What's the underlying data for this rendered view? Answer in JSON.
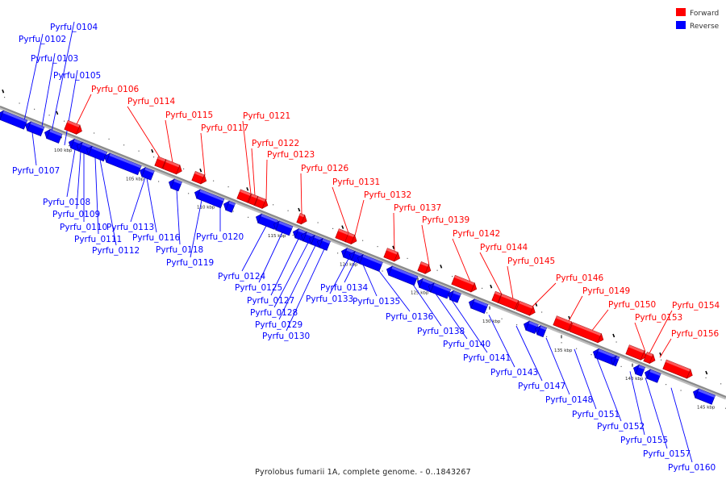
{
  "caption": "Pyrolobus fumarii 1A, complete genome. - 0..1843267",
  "legend": [
    {
      "label": "Forward",
      "color": "#ff0000"
    },
    {
      "label": "Reverse",
      "color": "#0000ff"
    }
  ],
  "colors": {
    "forward": "#ff0000",
    "reverse": "#0000ff",
    "axis": "#8a8a8a"
  },
  "ticks": [
    "100 kbp",
    "105 kbp",
    "110 kbp",
    "115 kbp",
    "120 kbp",
    "125 kbp",
    "130 kbp",
    "135 kbp",
    "140 kbp",
    "145 kbp"
  ],
  "genes": [
    {
      "name": "Pyrfu_0102",
      "strand": "reverse"
    },
    {
      "name": "Pyrfu_0103",
      "strand": "reverse"
    },
    {
      "name": "Pyrfu_0104",
      "strand": "reverse"
    },
    {
      "name": "Pyrfu_0105",
      "strand": "reverse"
    },
    {
      "name": "Pyrfu_0106",
      "strand": "forward"
    },
    {
      "name": "Pyrfu_0107",
      "strand": "reverse"
    },
    {
      "name": "Pyrfu_0108",
      "strand": "reverse"
    },
    {
      "name": "Pyrfu_0109",
      "strand": "reverse"
    },
    {
      "name": "Pyrfu_0110",
      "strand": "reverse"
    },
    {
      "name": "Pyrfu_0111",
      "strand": "reverse"
    },
    {
      "name": "Pyrfu_0112",
      "strand": "reverse"
    },
    {
      "name": "Pyrfu_0113",
      "strand": "reverse"
    },
    {
      "name": "Pyrfu_0114",
      "strand": "forward"
    },
    {
      "name": "Pyrfu_0115",
      "strand": "forward"
    },
    {
      "name": "Pyrfu_0116",
      "strand": "reverse"
    },
    {
      "name": "Pyrfu_0117",
      "strand": "forward"
    },
    {
      "name": "Pyrfu_0118",
      "strand": "reverse"
    },
    {
      "name": "Pyrfu_0119",
      "strand": "reverse"
    },
    {
      "name": "Pyrfu_0120",
      "strand": "reverse"
    },
    {
      "name": "Pyrfu_0121",
      "strand": "forward"
    },
    {
      "name": "Pyrfu_0122",
      "strand": "forward"
    },
    {
      "name": "Pyrfu_0123",
      "strand": "forward"
    },
    {
      "name": "Pyrfu_0124",
      "strand": "reverse"
    },
    {
      "name": "Pyrfu_0125",
      "strand": "reverse"
    },
    {
      "name": "Pyrfu_0126",
      "strand": "forward"
    },
    {
      "name": "Pyrfu_0127",
      "strand": "reverse"
    },
    {
      "name": "Pyrfu_0128",
      "strand": "reverse"
    },
    {
      "name": "Pyrfu_0129",
      "strand": "reverse"
    },
    {
      "name": "Pyrfu_0130",
      "strand": "reverse"
    },
    {
      "name": "Pyrfu_0131",
      "strand": "forward"
    },
    {
      "name": "Pyrfu_0132",
      "strand": "forward"
    },
    {
      "name": "Pyrfu_0133",
      "strand": "reverse"
    },
    {
      "name": "Pyrfu_0134",
      "strand": "reverse"
    },
    {
      "name": "Pyrfu_0135",
      "strand": "reverse"
    },
    {
      "name": "Pyrfu_0136",
      "strand": "reverse"
    },
    {
      "name": "Pyrfu_0137",
      "strand": "forward"
    },
    {
      "name": "Pyrfu_0138",
      "strand": "reverse"
    },
    {
      "name": "Pyrfu_0139",
      "strand": "forward"
    },
    {
      "name": "Pyrfu_0140",
      "strand": "reverse"
    },
    {
      "name": "Pyrfu_0141",
      "strand": "reverse"
    },
    {
      "name": "Pyrfu_0142",
      "strand": "forward"
    },
    {
      "name": "Pyrfu_0143",
      "strand": "reverse"
    },
    {
      "name": "Pyrfu_0144",
      "strand": "forward"
    },
    {
      "name": "Pyrfu_0145",
      "strand": "forward"
    },
    {
      "name": "Pyrfu_0146",
      "strand": "forward"
    },
    {
      "name": "Pyrfu_0147",
      "strand": "reverse"
    },
    {
      "name": "Pyrfu_0148",
      "strand": "reverse"
    },
    {
      "name": "Pyrfu_0149",
      "strand": "forward"
    },
    {
      "name": "Pyrfu_0150",
      "strand": "forward"
    },
    {
      "name": "Pyrfu_0151",
      "strand": "reverse"
    },
    {
      "name": "Pyrfu_0152",
      "strand": "reverse"
    },
    {
      "name": "Pyrfu_0153",
      "strand": "forward"
    },
    {
      "name": "Pyrfu_0154",
      "strand": "forward"
    },
    {
      "name": "Pyrfu_0155",
      "strand": "reverse"
    },
    {
      "name": "Pyrfu_0156",
      "strand": "forward"
    },
    {
      "name": "Pyrfu_0157",
      "strand": "reverse"
    },
    {
      "name": "Pyrfu_0160",
      "strand": "reverse"
    }
  ]
}
